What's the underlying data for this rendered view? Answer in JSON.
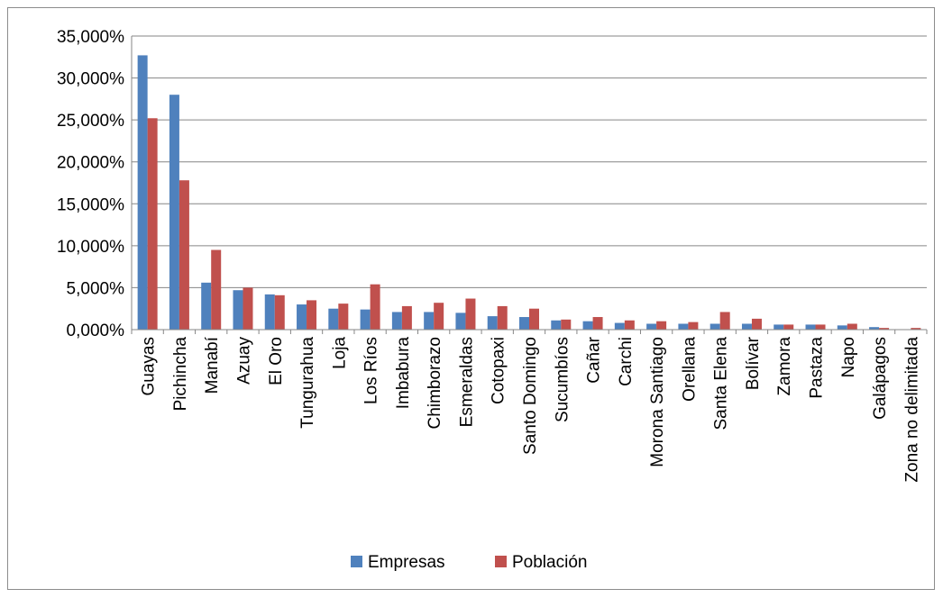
{
  "chart_data": {
    "type": "bar",
    "title": "",
    "xlabel": "",
    "ylabel": "",
    "ylim": [
      0,
      35
    ],
    "yticks": [
      0,
      5,
      10,
      15,
      20,
      25,
      30,
      35
    ],
    "ytick_labels": [
      "0,000%",
      "5,000%",
      "10,000%",
      "15,000%",
      "20,000%",
      "25,000%",
      "30,000%",
      "35,000%"
    ],
    "grid": true,
    "legend_position": "bottom",
    "categories": [
      "Guayas",
      "Pichincha",
      "Manabí",
      "Azuay",
      "El Oro",
      "Tungurahua",
      "Loja",
      "Los Ríos",
      "Imbabura",
      "Chimborazo",
      "Esmeraldas",
      "Cotopaxi",
      "Santo Domingo",
      "Sucumbíos",
      "Cañar",
      "Carchi",
      "Morona Santiago",
      "Orellana",
      "Santa Elena",
      "Bolívar",
      "Zamora",
      "Pastaza",
      "Napo",
      "Galápagos",
      "Zona no delimitada"
    ],
    "series": [
      {
        "name": "Empresas",
        "color": "#4f81bd",
        "values": [
          32.7,
          28.0,
          5.6,
          4.7,
          4.2,
          3.0,
          2.5,
          2.4,
          2.1,
          2.1,
          2.0,
          1.6,
          1.5,
          1.1,
          1.0,
          0.8,
          0.7,
          0.7,
          0.7,
          0.7,
          0.6,
          0.6,
          0.5,
          0.3,
          0.05
        ]
      },
      {
        "name": "Población",
        "color": "#c0504d",
        "values": [
          25.2,
          17.8,
          9.5,
          5.0,
          4.1,
          3.5,
          3.1,
          5.4,
          2.8,
          3.2,
          3.7,
          2.8,
          2.5,
          1.2,
          1.5,
          1.1,
          1.0,
          0.9,
          2.1,
          1.3,
          0.6,
          0.6,
          0.7,
          0.2,
          0.2
        ]
      }
    ]
  }
}
